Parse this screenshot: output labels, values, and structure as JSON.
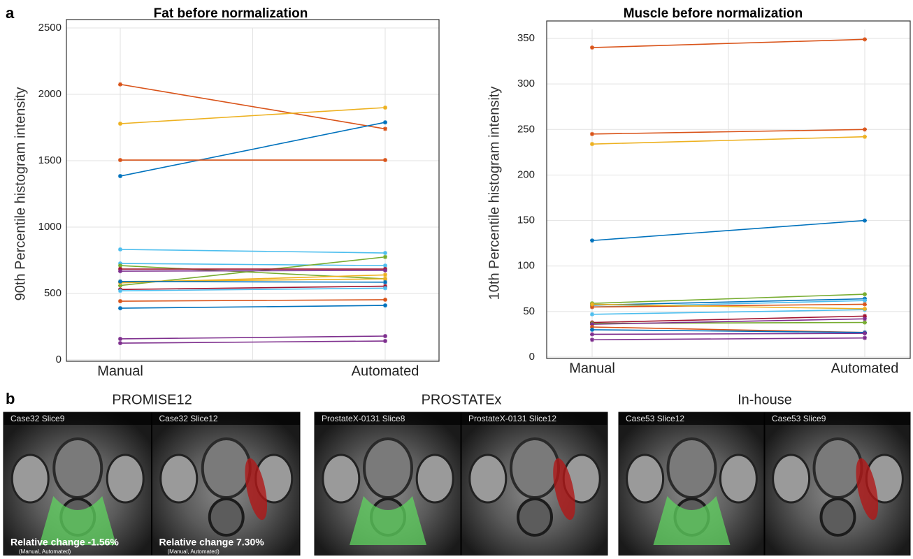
{
  "panel_labels": [
    "a",
    "b"
  ],
  "chart_data": [
    {
      "type": "line",
      "title": "Fat before normalization",
      "y_label": "90th Percentile histogram intensity",
      "categories": [
        "Manual",
        "Automated"
      ],
      "ylim": [
        0,
        2500
      ],
      "yticks": [
        0,
        500,
        1000,
        1500,
        2000,
        2500
      ],
      "grid": true,
      "series": [
        {
          "color": "#D95319",
          "values": [
            2075,
            1740
          ]
        },
        {
          "color": "#EDB120",
          "values": [
            1779,
            1900
          ]
        },
        {
          "color": "#0072BD",
          "values": [
            1384,
            1789
          ]
        },
        {
          "color": "#D95319",
          "values": [
            1505,
            1505
          ]
        },
        {
          "color": "#4DBEEE",
          "values": [
            832,
            805
          ]
        },
        {
          "color": "#4DBEEE",
          "values": [
            726,
            710
          ]
        },
        {
          "color": "#77AC30",
          "values": [
            560,
            775
          ]
        },
        {
          "color": "#77AC30",
          "values": [
            710,
            610
          ]
        },
        {
          "color": "#A2142F",
          "values": [
            684,
            684
          ]
        },
        {
          "color": "#7E2F8E",
          "values": [
            668,
            674
          ]
        },
        {
          "color": "#EDB120",
          "values": [
            590,
            610
          ]
        },
        {
          "color": "#EDB120",
          "values": [
            580,
            640
          ]
        },
        {
          "color": "#0072BD",
          "values": [
            590,
            585
          ]
        },
        {
          "color": "#A2142F",
          "values": [
            530,
            555
          ]
        },
        {
          "color": "#4DBEEE",
          "values": [
            520,
            540
          ]
        },
        {
          "color": "#D95319",
          "values": [
            442,
            453
          ]
        },
        {
          "color": "#0072BD",
          "values": [
            389,
            410
          ]
        },
        {
          "color": "#7E2F8E",
          "values": [
            158,
            179
          ]
        },
        {
          "color": "#7E2F8E",
          "values": [
            126,
            142
          ]
        }
      ]
    },
    {
      "type": "line",
      "title": "Muscle before normalization",
      "y_label": "10th Percentile histogram intensity",
      "categories": [
        "Manual",
        "Automated"
      ],
      "ylim": [
        0,
        360
      ],
      "yticks": [
        0,
        50,
        100,
        150,
        200,
        250,
        300,
        350
      ],
      "grid": true,
      "series": [
        {
          "color": "#D95319",
          "values": [
            340,
            349
          ]
        },
        {
          "color": "#D95319",
          "values": [
            245,
            250
          ]
        },
        {
          "color": "#EDB120",
          "values": [
            234,
            242
          ]
        },
        {
          "color": "#0072BD",
          "values": [
            128,
            150
          ]
        },
        {
          "color": "#77AC30",
          "values": [
            59,
            69
          ]
        },
        {
          "color": "#0072BD",
          "values": [
            57,
            64
          ]
        },
        {
          "color": "#4DBEEE",
          "values": [
            55,
            62
          ]
        },
        {
          "color": "#D95319",
          "values": [
            55,
            58
          ]
        },
        {
          "color": "#4DBEEE",
          "values": [
            47,
            52
          ]
        },
        {
          "color": "#EDB120",
          "values": [
            58,
            53
          ]
        },
        {
          "color": "#A2142F",
          "values": [
            38,
            45
          ]
        },
        {
          "color": "#77AC30",
          "values": [
            37,
            38
          ]
        },
        {
          "color": "#7E2F8E",
          "values": [
            36,
            42
          ]
        },
        {
          "color": "#D95319",
          "values": [
            33,
            27
          ]
        },
        {
          "color": "#0072BD",
          "values": [
            30,
            27
          ]
        },
        {
          "color": "#7E2F8E",
          "values": [
            25,
            26
          ]
        },
        {
          "color": "#7E2F8E",
          "values": [
            19,
            21
          ]
        }
      ]
    }
  ],
  "panel_b": {
    "groups": [
      {
        "title": "PROMISE12",
        "images": [
          {
            "label": "Case32 Slice9",
            "note": "Relative change  -1.56%",
            "note_sub": "(Manual, Automated)"
          },
          {
            "label": "Case32 Slice12",
            "note": "Relative change  7.30%",
            "note_sub": "(Manual, Automated)"
          }
        ]
      },
      {
        "title": "PROSTATEx",
        "images": [
          {
            "label": "ProstateX-0131 Slice8"
          },
          {
            "label": "ProstateX-0131 Slice12"
          }
        ]
      },
      {
        "title": "In-house",
        "images": [
          {
            "label": "Case53 Slice12"
          },
          {
            "label": "Case53 Slice9"
          }
        ]
      }
    ]
  }
}
